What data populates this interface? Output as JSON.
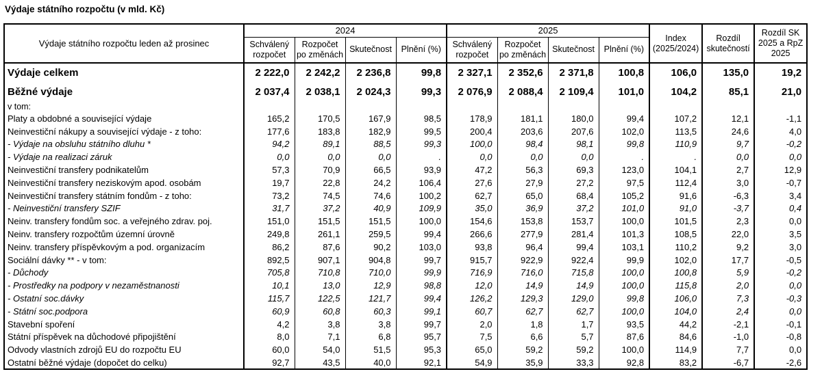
{
  "title": "Výdaje státního rozpočtu (v mld. Kč)",
  "table": {
    "row_header": "Výdaje státního rozpočtu leden až prosinec",
    "groups": [
      {
        "label": "2024"
      },
      {
        "label": "2025"
      }
    ],
    "subheaders": [
      "Schválený rozpočet",
      "Rozpočet po změnách",
      "Skutečnost",
      "Plnění (%)"
    ],
    "extra_headers": [
      "Index (2025/2024)",
      "Rozdíl skutečností",
      "Rozdíl SK 2025 a RpZ 2025"
    ],
    "rows": [
      {
        "label": "Výdaje celkem",
        "style": "total",
        "values": [
          "2 222,0",
          "2 242,2",
          "2 236,8",
          "99,8",
          "2 327,1",
          "2 352,6",
          "2 371,8",
          "100,8",
          "106,0",
          "135,0",
          "19,2"
        ]
      },
      {
        "label": "Běžné výdaje",
        "style": "total",
        "values": [
          "2 037,4",
          "2 038,1",
          "2 024,3",
          "99,3",
          "2 076,9",
          "2 088,4",
          "2 109,4",
          "101,0",
          "104,2",
          "85,1",
          "21,0"
        ]
      },
      {
        "label": "v tom:",
        "style": "section",
        "values": [
          "",
          "",
          "",
          "",
          "",
          "",
          "",
          "",
          "",
          "",
          ""
        ]
      },
      {
        "label": "Platy a obdobné a související výdaje",
        "style": "normal",
        "values": [
          "165,2",
          "170,5",
          "167,9",
          "98,5",
          "178,9",
          "181,1",
          "180,0",
          "99,4",
          "107,2",
          "12,1",
          "-1,1"
        ]
      },
      {
        "label": "Neinvestiční nákupy a související výdaje - z toho:",
        "style": "normal",
        "values": [
          "177,6",
          "183,8",
          "182,9",
          "99,5",
          "200,4",
          "203,6",
          "207,6",
          "102,0",
          "113,5",
          "24,6",
          "4,0"
        ]
      },
      {
        "label": "- Výdaje na obsluhu státního dluhu *",
        "style": "italic",
        "values": [
          "94,2",
          "89,1",
          "88,5",
          "99,3",
          "100,0",
          "98,4",
          "98,1",
          "99,8",
          "110,9",
          "9,7",
          "-0,2"
        ]
      },
      {
        "label": "- Výdaje na realizaci záruk",
        "style": "italic",
        "values": [
          "0,0",
          "0,0",
          "0,0",
          ".",
          "0,0",
          "0,0",
          "0,0",
          ".",
          ".",
          "0,0",
          "0,0"
        ]
      },
      {
        "label": "Neinvestiční transfery podnikatelům",
        "style": "normal",
        "values": [
          "57,3",
          "70,9",
          "66,5",
          "93,9",
          "47,2",
          "56,3",
          "69,3",
          "123,0",
          "104,1",
          "2,7",
          "12,9"
        ]
      },
      {
        "label": "Neinvestiční transfery neziskovým apod. osobám",
        "style": "normal",
        "values": [
          "19,7",
          "22,8",
          "24,2",
          "106,4",
          "27,6",
          "27,9",
          "27,2",
          "97,5",
          "112,4",
          "3,0",
          "-0,7"
        ]
      },
      {
        "label": "Neinvestiční transfery státním fondům - z toho:",
        "style": "normal",
        "values": [
          "73,2",
          "74,5",
          "74,6",
          "100,2",
          "62,7",
          "65,0",
          "68,4",
          "105,2",
          "91,6",
          "-6,3",
          "3,4"
        ]
      },
      {
        "label": "- Neinvestiční transfery SZIF",
        "style": "italic",
        "values": [
          "31,7",
          "37,2",
          "40,9",
          "109,9",
          "35,0",
          "36,9",
          "37,2",
          "101,0",
          "91,0",
          "-3,7",
          "0,4"
        ]
      },
      {
        "label": "Neinv. transfery fondům soc. a veřejného zdrav. poj.",
        "style": "normal",
        "values": [
          "151,0",
          "151,5",
          "151,5",
          "100,0",
          "154,6",
          "153,8",
          "153,7",
          "100,0",
          "101,5",
          "2,3",
          "0,0"
        ]
      },
      {
        "label": "Neinv. transfery rozpočtům územní úrovně",
        "style": "normal",
        "values": [
          "249,8",
          "261,1",
          "259,5",
          "99,4",
          "266,6",
          "277,9",
          "281,4",
          "101,3",
          "108,5",
          "22,0",
          "3,5"
        ]
      },
      {
        "label": "Neinv. transfery příspěvkovým a pod. organizacím",
        "style": "normal",
        "values": [
          "86,2",
          "87,6",
          "90,2",
          "103,0",
          "93,8",
          "96,4",
          "99,4",
          "103,1",
          "110,2",
          "9,2",
          "3,0"
        ]
      },
      {
        "label": "Sociální dávky ** - v tom:",
        "style": "normal",
        "values": [
          "892,5",
          "907,1",
          "904,8",
          "99,7",
          "915,7",
          "922,9",
          "922,4",
          "99,9",
          "102,0",
          "17,7",
          "-0,5"
        ]
      },
      {
        "label": "- Důchody",
        "style": "italic",
        "values": [
          "705,8",
          "710,8",
          "710,0",
          "99,9",
          "716,9",
          "716,0",
          "715,8",
          "100,0",
          "100,8",
          "5,9",
          "-0,2"
        ]
      },
      {
        "label": "- Prostředky na podpory v nezaměstnanosti",
        "style": "italic",
        "values": [
          "10,1",
          "13,0",
          "12,9",
          "98,8",
          "12,0",
          "14,9",
          "14,9",
          "100,0",
          "115,8",
          "2,0",
          "0,0"
        ]
      },
      {
        "label": "- Ostatní soc.dávky",
        "style": "italic",
        "values": [
          "115,7",
          "122,5",
          "121,7",
          "99,4",
          "126,2",
          "129,3",
          "129,0",
          "99,8",
          "106,0",
          "7,3",
          "-0,3"
        ]
      },
      {
        "label": "- Státní soc.podpora",
        "style": "italic",
        "values": [
          "60,9",
          "60,8",
          "60,3",
          "99,1",
          "60,7",
          "62,7",
          "62,7",
          "100,0",
          "104,0",
          "2,4",
          "0,0"
        ]
      },
      {
        "label": "Stavební spoření",
        "style": "normal",
        "values": [
          "4,2",
          "3,8",
          "3,8",
          "99,7",
          "2,0",
          "1,8",
          "1,7",
          "93,5",
          "44,2",
          "-2,1",
          "-0,1"
        ]
      },
      {
        "label": "Státní příspěvek na důchodové připojištění",
        "style": "normal",
        "values": [
          "8,0",
          "7,1",
          "6,8",
          "95,7",
          "7,5",
          "6,6",
          "5,7",
          "87,6",
          "84,6",
          "-1,0",
          "-0,8"
        ]
      },
      {
        "label": "Odvody vlastních zdrojů EU do rozpočtu EU",
        "style": "normal",
        "values": [
          "60,0",
          "54,0",
          "51,5",
          "95,3",
          "65,0",
          "59,2",
          "59,2",
          "100,0",
          "114,9",
          "7,7",
          "0,0"
        ]
      },
      {
        "label": "Ostatní běžné výdaje (dopočet do celku)",
        "style": "normal",
        "values": [
          "92,7",
          "43,5",
          "40,0",
          "92,1",
          "54,9",
          "35,9",
          "33,3",
          "92,8",
          "83,2",
          "-6,7",
          "-2,6"
        ]
      }
    ]
  }
}
